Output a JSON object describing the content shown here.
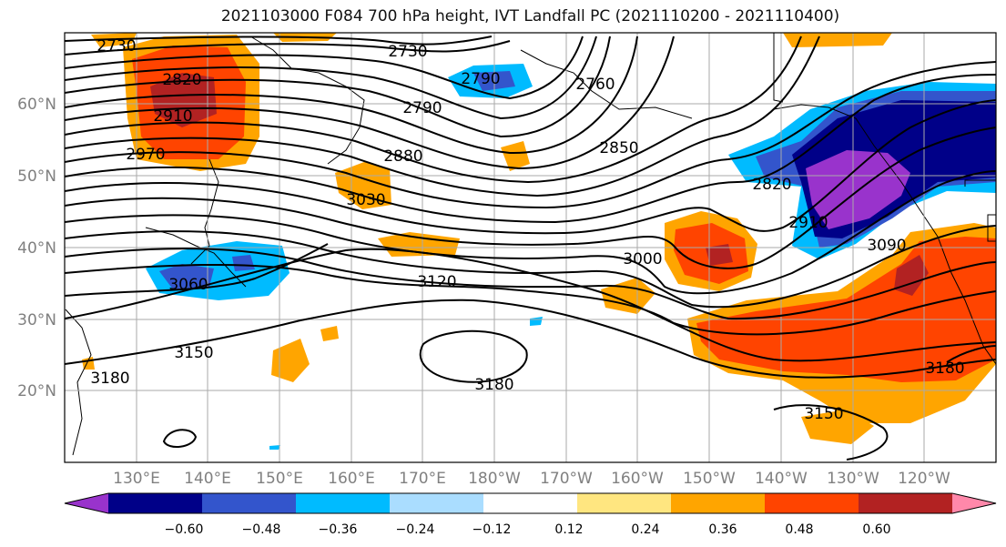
{
  "title": "2021103000 F084 700 hPa height, IVT Landfall PC (2021110200 - 2021110400)",
  "lat_labels": [
    "60°N",
    "50°N",
    "40°N",
    "30°N",
    "20°N"
  ],
  "lon_labels": [
    "130°E",
    "140°E",
    "150°E",
    "160°E",
    "170°E",
    "180°W",
    "170°W",
    "160°W",
    "150°W",
    "140°W",
    "130°W",
    "120°W"
  ],
  "contour_labels": [
    "2730",
    "2730",
    "2820",
    "2910",
    "2970",
    "2790",
    "2760",
    "2790",
    "2880",
    "3030",
    "2850",
    "2820",
    "2910",
    "3000",
    "3060",
    "3120",
    "3090",
    "3150",
    "3180",
    "3180",
    "3180",
    "3150"
  ],
  "colorbar": {
    "colors": [
      "#9933cc",
      "#000088",
      "#3355cc",
      "#00bbff",
      "#aaddff",
      "#ffffff",
      "#ffe680",
      "#ffa500",
      "#ff4400",
      "#b22222",
      "#ff88aa"
    ],
    "tick_labels": [
      "−0.60",
      "−0.48",
      "−0.36",
      "−0.24",
      "−0.12",
      "0.12",
      "0.24",
      "0.36",
      "0.48",
      "0.60"
    ]
  }
}
